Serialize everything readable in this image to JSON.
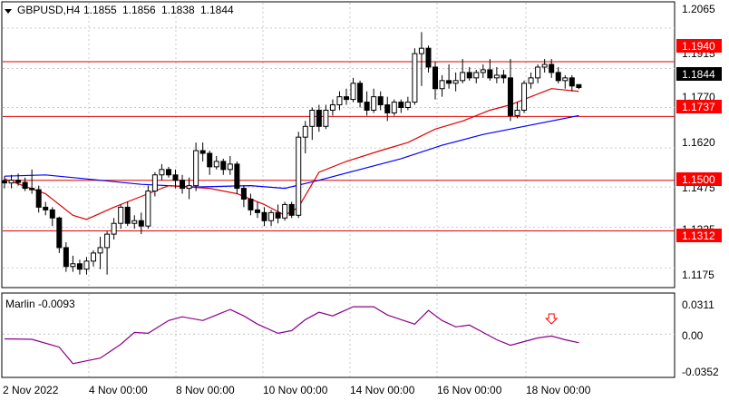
{
  "header": {
    "symbol_label": "GBPUSD,H4",
    "open": "1.1855",
    "high": "1.1856",
    "low": "1.1838",
    "close": "1.1844",
    "menu_icon": "triangle-down-icon"
  },
  "colors": {
    "background": "#ffffff",
    "frame": "#000000",
    "bull_body": "#ffffff",
    "bear_body": "#000000",
    "candle_outline": "#000000",
    "red_ma": "#e00000",
    "blue_ma": "#0000ff",
    "level_line": "#e00000",
    "level_label_bg": "#ff0000",
    "level_label_text": "#ffffff",
    "oscillator_line": "#8b008b",
    "signal_arrow": "#ff0000"
  },
  "price_axis": {
    "ticks": [
      "1.2065",
      "1.1915",
      "1.1770",
      "1.1620",
      "1.1475",
      "1.1325",
      "1.1175"
    ],
    "current_price_label": "1.1844",
    "range": [
      1.1105,
      1.2095
    ]
  },
  "levels": [
    {
      "value": 1.194,
      "label": "1.1940"
    },
    {
      "value": 1.1737,
      "label": "1.1737"
    },
    {
      "value": 1.15,
      "label": "1.1500"
    },
    {
      "value": 1.1312,
      "label": "1.1312"
    }
  ],
  "time_axis": {
    "labels": [
      "2 Nov 2022",
      "4 Nov 00:00",
      "8 Nov 00:00",
      "10 Nov 00:00",
      "14 Nov 00:00",
      "16 Nov 00:00",
      "18 Nov 00:00"
    ]
  },
  "indicator": {
    "name_value": "Marlin -0.0093",
    "ticks": [
      "0.0311",
      "0.00",
      "-0.0352"
    ],
    "range": [
      -0.0352,
      0.0311
    ]
  },
  "chart_data": {
    "type": "candlestick",
    "symbol": "GBPUSD",
    "timeframe": "H4",
    "candles": [
      [
        1.1498,
        1.1515,
        1.147,
        1.149
      ],
      [
        1.149,
        1.152,
        1.147,
        1.15
      ],
      [
        1.15,
        1.1525,
        1.148,
        1.1492
      ],
      [
        1.1492,
        1.151,
        1.146,
        1.147
      ],
      [
        1.147,
        1.154,
        1.145,
        1.1465
      ],
      [
        1.1465,
        1.148,
        1.138,
        1.14
      ],
      [
        1.14,
        1.142,
        1.137,
        1.139
      ],
      [
        1.139,
        1.14,
        1.133,
        1.136
      ],
      [
        1.136,
        1.1365,
        1.123,
        1.125
      ],
      [
        1.125,
        1.127,
        1.116,
        1.118
      ],
      [
        1.118,
        1.122,
        1.116,
        1.119
      ],
      [
        1.119,
        1.1205,
        1.115,
        1.117
      ],
      [
        1.117,
        1.1215,
        1.115,
        1.12
      ],
      [
        1.12,
        1.124,
        1.118,
        1.123
      ],
      [
        1.123,
        1.129,
        1.117,
        1.125
      ],
      [
        1.125,
        1.131,
        1.115,
        1.13
      ],
      [
        1.13,
        1.136,
        1.128,
        1.134
      ],
      [
        1.134,
        1.141,
        1.132,
        1.14
      ],
      [
        1.14,
        1.142,
        1.133,
        1.134
      ],
      [
        1.134,
        1.137,
        1.132,
        1.135
      ],
      [
        1.135,
        1.138,
        1.13,
        1.133
      ],
      [
        1.133,
        1.148,
        1.132,
        1.146
      ],
      [
        1.146,
        1.153,
        1.144,
        1.152
      ],
      [
        1.152,
        1.156,
        1.15,
        1.154
      ],
      [
        1.154,
        1.155,
        1.151,
        1.152
      ],
      [
        1.152,
        1.154,
        1.147,
        1.15
      ],
      [
        1.15,
        1.152,
        1.145,
        1.147
      ],
      [
        1.147,
        1.151,
        1.143,
        1.148
      ],
      [
        1.148,
        1.164,
        1.146,
        1.161
      ],
      [
        1.161,
        1.164,
        1.157,
        1.16
      ],
      [
        1.16,
        1.161,
        1.152,
        1.155
      ],
      [
        1.155,
        1.159,
        1.154,
        1.157
      ],
      [
        1.157,
        1.158,
        1.152,
        1.154
      ],
      [
        1.154,
        1.159,
        1.152,
        1.156
      ],
      [
        1.156,
        1.157,
        1.145,
        1.147
      ],
      [
        1.147,
        1.148,
        1.14,
        1.143
      ],
      [
        1.143,
        1.145,
        1.137,
        1.139
      ],
      [
        1.139,
        1.142,
        1.136,
        1.138
      ],
      [
        1.138,
        1.14,
        1.133,
        1.135
      ],
      [
        1.135,
        1.139,
        1.133,
        1.138
      ],
      [
        1.138,
        1.141,
        1.134,
        1.136
      ],
      [
        1.136,
        1.142,
        1.135,
        1.141
      ],
      [
        1.141,
        1.142,
        1.136,
        1.137
      ],
      [
        1.137,
        1.168,
        1.136,
        1.166
      ],
      [
        1.166,
        1.172,
        1.16,
        1.17
      ],
      [
        1.17,
        1.177,
        1.165,
        1.176
      ],
      [
        1.176,
        1.178,
        1.168,
        1.17
      ],
      [
        1.17,
        1.178,
        1.169,
        1.176
      ],
      [
        1.176,
        1.18,
        1.174,
        1.178
      ],
      [
        1.178,
        1.183,
        1.176,
        1.181
      ],
      [
        1.181,
        1.184,
        1.178,
        1.18
      ],
      [
        1.18,
        1.188,
        1.179,
        1.186
      ],
      [
        1.186,
        1.187,
        1.177,
        1.179
      ],
      [
        1.179,
        1.183,
        1.174,
        1.176
      ],
      [
        1.176,
        1.184,
        1.175,
        1.181
      ],
      [
        1.181,
        1.183,
        1.176,
        1.178
      ],
      [
        1.178,
        1.181,
        1.172,
        1.175
      ],
      [
        1.175,
        1.18,
        1.174,
        1.179
      ],
      [
        1.179,
        1.18,
        1.175,
        1.177
      ],
      [
        1.177,
        1.181,
        1.176,
        1.179
      ],
      [
        1.179,
        1.199,
        1.178,
        1.197
      ],
      [
        1.197,
        1.205,
        1.185,
        1.199
      ],
      [
        1.199,
        1.2,
        1.19,
        1.192
      ],
      [
        1.192,
        1.194,
        1.18,
        1.184
      ],
      [
        1.184,
        1.189,
        1.181,
        1.187
      ],
      [
        1.187,
        1.193,
        1.184,
        1.186
      ],
      [
        1.186,
        1.19,
        1.183,
        1.187
      ],
      [
        1.187,
        1.195,
        1.186,
        1.19
      ],
      [
        1.19,
        1.192,
        1.187,
        1.188
      ],
      [
        1.188,
        1.191,
        1.186,
        1.19
      ],
      [
        1.19,
        1.193,
        1.188,
        1.191
      ],
      [
        1.191,
        1.195,
        1.187,
        1.188
      ],
      [
        1.188,
        1.192,
        1.186,
        1.189
      ],
      [
        1.189,
        1.191,
        1.186,
        1.188
      ],
      [
        1.188,
        1.195,
        1.172,
        1.174
      ],
      [
        1.174,
        1.179,
        1.173,
        1.176
      ],
      [
        1.176,
        1.187,
        1.175,
        1.186
      ],
      [
        1.186,
        1.19,
        1.184,
        1.188
      ],
      [
        1.188,
        1.193,
        1.186,
        1.192
      ],
      [
        1.192,
        1.195,
        1.19,
        1.193
      ],
      [
        1.193,
        1.195,
        1.188,
        1.19
      ],
      [
        1.19,
        1.192,
        1.186,
        1.187
      ],
      [
        1.187,
        1.189,
        1.184,
        1.188
      ],
      [
        1.188,
        1.189,
        1.183,
        1.185
      ],
      [
        1.1855,
        1.1856,
        1.1838,
        1.1844
      ]
    ],
    "red_ma": [
      [
        0,
        1.1505
      ],
      [
        6,
        1.145
      ],
      [
        10,
        1.137
      ],
      [
        12,
        1.1355
      ],
      [
        16,
        1.14
      ],
      [
        20,
        1.144
      ],
      [
        24,
        1.148
      ],
      [
        30,
        1.147
      ],
      [
        34,
        1.145
      ],
      [
        38,
        1.141
      ],
      [
        41,
        1.137
      ],
      [
        43,
        1.14
      ],
      [
        46,
        1.153
      ],
      [
        50,
        1.157
      ],
      [
        55,
        1.161
      ],
      [
        59,
        1.164
      ],
      [
        63,
        1.169
      ],
      [
        67,
        1.172
      ],
      [
        71,
        1.176
      ],
      [
        74,
        1.178
      ],
      [
        77,
        1.181
      ],
      [
        80,
        1.184
      ],
      [
        82,
        1.1835
      ],
      [
        84,
        1.183
      ]
    ],
    "blue_ma": [
      [
        0,
        1.1515
      ],
      [
        6,
        1.152
      ],
      [
        12,
        1.1505
      ],
      [
        20,
        1.1485
      ],
      [
        28,
        1.1475
      ],
      [
        36,
        1.148
      ],
      [
        41,
        1.147
      ],
      [
        46,
        1.15
      ],
      [
        52,
        1.154
      ],
      [
        58,
        1.158
      ],
      [
        64,
        1.163
      ],
      [
        70,
        1.167
      ],
      [
        76,
        1.17
      ],
      [
        84,
        1.174
      ]
    ],
    "oscillator": [
      [
        0,
        -0.005
      ],
      [
        4,
        -0.0055
      ],
      [
        8,
        -0.014
      ],
      [
        10,
        -0.032
      ],
      [
        12,
        -0.029
      ],
      [
        14,
        -0.026
      ],
      [
        17,
        -0.011
      ],
      [
        19,
        0.002
      ],
      [
        21,
        0.001
      ],
      [
        24,
        0.015
      ],
      [
        26,
        0.019
      ],
      [
        29,
        0.015
      ],
      [
        31,
        0.021
      ],
      [
        33,
        0.027
      ],
      [
        35,
        0.02
      ],
      [
        37,
        0.011
      ],
      [
        40,
        0.001
      ],
      [
        42,
        0.004
      ],
      [
        44,
        0.016
      ],
      [
        46,
        0.024
      ],
      [
        48,
        0.02
      ],
      [
        51,
        0.03
      ],
      [
        54,
        0.03
      ],
      [
        56,
        0.021
      ],
      [
        58,
        0.016
      ],
      [
        60,
        0.011
      ],
      [
        62,
        0.026
      ],
      [
        64,
        0.015
      ],
      [
        66,
        0.008
      ],
      [
        68,
        0.01
      ],
      [
        70,
        0.002
      ],
      [
        72,
        -0.006
      ],
      [
        74,
        -0.012
      ],
      [
        76,
        -0.008
      ],
      [
        78,
        -0.004
      ],
      [
        80,
        -0.002
      ],
      [
        82,
        -0.006
      ],
      [
        84,
        -0.0093
      ]
    ],
    "signal_marker_index": 80
  }
}
